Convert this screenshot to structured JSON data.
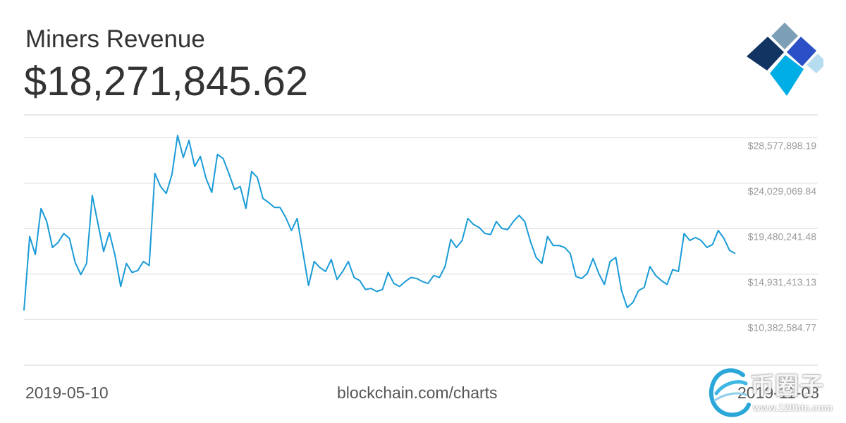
{
  "header": {
    "title": "Miners Revenue",
    "value": "$18,271,845.62"
  },
  "footer": {
    "start_date": "2019-05-10",
    "source": "blockchain.com/charts",
    "end_date": "2019-11-08"
  },
  "watermark": {
    "name": "币圈子",
    "url": "www.120btc.com"
  },
  "logo": {
    "icon": "blockchain-diamond-logo",
    "colors": [
      "#123463",
      "#7c9fb6",
      "#2b4fc6",
      "#00aee6",
      "#b6dcf0"
    ]
  },
  "chart_data": {
    "type": "line",
    "x_start": "2019-05-10",
    "x_end": "2019-11-08",
    "y_tick_labels": [
      "$28,577,898.19",
      "$24,029,069.84",
      "$19,480,241.48",
      "$14,931,413.13",
      "$10,382,584.77"
    ],
    "y_ticks": [
      28577898.19,
      24029069.84,
      19480241.48,
      14931413.13,
      10382584.77
    ],
    "ylim": [
      5833756.42,
      30852312.37
    ],
    "grid": true,
    "line_color": "#1a9bd7",
    "series": [
      {
        "values": [
          11300000,
          18700000,
          16900000,
          21500000,
          20200000,
          17600000,
          18100000,
          19000000,
          18500000,
          16100000,
          14900000,
          16000000,
          22800000,
          20000000,
          17200000,
          19100000,
          16800000,
          13700000,
          16000000,
          15100000,
          15300000,
          16200000,
          15800000,
          25000000,
          23700000,
          23000000,
          24900000,
          28800000,
          26600000,
          28300000,
          25700000,
          26700000,
          24500000,
          23100000,
          26900000,
          26500000,
          25000000,
          23400000,
          23700000,
          21500000,
          25200000,
          24600000,
          22500000,
          22100000,
          21600000,
          21600000,
          20600000,
          19300000,
          20500000,
          17200000,
          13800000,
          16200000,
          15600000,
          15200000,
          16400000,
          14400000,
          15200000,
          16200000,
          14600000,
          14300000,
          13400000,
          13500000,
          13200000,
          13400000,
          15100000,
          14000000,
          13700000,
          14200000,
          14600000,
          14500000,
          14200000,
          14000000,
          14800000,
          14600000,
          15700000,
          18400000,
          17600000,
          18300000,
          20500000,
          19900000,
          19600000,
          19000000,
          18900000,
          20200000,
          19500000,
          19400000,
          20200000,
          20800000,
          20200000,
          18200000,
          16600000,
          16000000,
          18700000,
          17800000,
          17800000,
          17600000,
          17000000,
          14700000,
          14500000,
          15000000,
          16500000,
          15000000,
          13900000,
          16200000,
          16600000,
          13300000,
          11600000,
          12100000,
          13300000,
          13600000,
          15700000,
          14800000,
          14300000,
          13900000,
          15400000,
          15200000,
          19000000,
          18300000,
          18600000,
          18300000,
          17600000,
          17900000,
          19300000,
          18500000,
          17300000,
          17000000
        ]
      }
    ]
  }
}
